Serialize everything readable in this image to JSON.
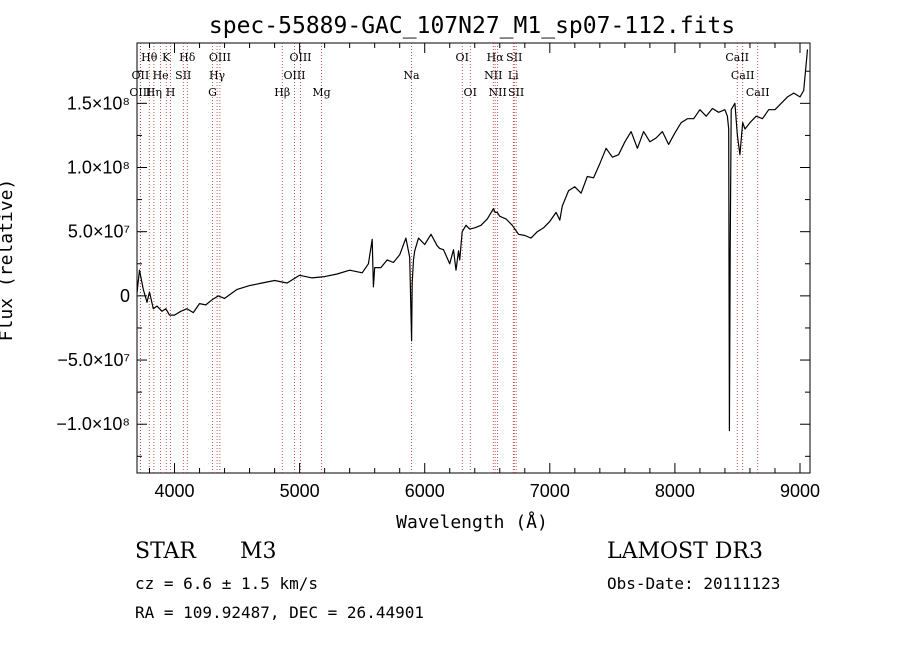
{
  "chart_data": {
    "type": "line",
    "title": "spec-55889-GAC_107N27_M1_sp07-112.fits",
    "xlabel": "Wavelength (Å)",
    "ylabel": "Flux (relative)",
    "xlim": [
      3700,
      9080
    ],
    "ylim": [
      -138000000.0,
      197000000.0
    ],
    "x_ticks": [
      4000,
      5000,
      6000,
      7000,
      8000,
      9000
    ],
    "x_tick_labels": [
      "4000",
      "5000",
      "6000",
      "7000",
      "8000",
      "9000"
    ],
    "y_ticks": [
      -100000000.0,
      -50000000.0,
      0,
      50000000.0,
      100000000.0,
      150000000.0
    ],
    "y_tick_labels": [
      "−1.0×10⁸",
      "−5.0×10⁷",
      "0",
      "5.0×10⁷",
      "1.0×10⁸",
      "1.5×10⁸"
    ],
    "series": [
      {
        "name": "flux",
        "x": [
          3700,
          3720,
          3750,
          3780,
          3800,
          3830,
          3860,
          3900,
          3930,
          3960,
          4000,
          4050,
          4100,
          4150,
          4200,
          4250,
          4300,
          4350,
          4400,
          4500,
          4600,
          4700,
          4800,
          4900,
          5000,
          5100,
          5200,
          5300,
          5400,
          5500,
          5550,
          5580,
          5590,
          5600,
          5650,
          5700,
          5750,
          5800,
          5850,
          5880,
          5890,
          5895,
          5900,
          5910,
          5920,
          5950,
          6000,
          6050,
          6100,
          6120,
          6150,
          6200,
          6230,
          6250,
          6270,
          6280,
          6300,
          6330,
          6360,
          6400,
          6450,
          6500,
          6550,
          6563,
          6580,
          6600,
          6650,
          6700,
          6750,
          6800,
          6850,
          6900,
          6950,
          7000,
          7050,
          7080,
          7100,
          7150,
          7200,
          7250,
          7300,
          7350,
          7400,
          7450,
          7500,
          7550,
          7600,
          7650,
          7700,
          7750,
          7800,
          7850,
          7900,
          7950,
          8000,
          8050,
          8100,
          8150,
          8200,
          8250,
          8300,
          8350,
          8400,
          8420,
          8430,
          8436,
          8442,
          8450,
          8480,
          8500,
          8520,
          8542,
          8560,
          8600,
          8650,
          8700,
          8750,
          8800,
          8850,
          8900,
          8950,
          9000,
          9030,
          9060
        ],
        "y": [
          2500000.0,
          20000000.0,
          5000000.0,
          -5000000.0,
          3000000.0,
          -10000000.0,
          -8000000.0,
          -12000000.0,
          -10000000.0,
          -15000000.0,
          -15000000.0,
          -12000000.0,
          -10000000.0,
          -13000000.0,
          -6000000.0,
          -7000000.0,
          -3000000.0,
          0.0,
          -2000000.0,
          5000000.0,
          8000000.0,
          10000000.0,
          12000000.0,
          10000000.0,
          16000000.0,
          14000000.0,
          15000000.0,
          17000000.0,
          20000000.0,
          18000000.0,
          25000000.0,
          44000000.0,
          7000000.0,
          22000000.0,
          22000000.0,
          28000000.0,
          26000000.0,
          32000000.0,
          45000000.0,
          30000000.0,
          -15000000.0,
          -35000000.0,
          10000000.0,
          28000000.0,
          35000000.0,
          45000000.0,
          40000000.0,
          48000000.0,
          39000000.0,
          37000000.0,
          36000000.0,
          25000000.0,
          36000000.0,
          20000000.0,
          35000000.0,
          28000000.0,
          50000000.0,
          55000000.0,
          52000000.0,
          53000000.0,
          55000000.0,
          60000000.0,
          68000000.0,
          65000000.0,
          65000000.0,
          62000000.0,
          60000000.0,
          55000000.0,
          48000000.0,
          47000000.0,
          45000000.0,
          50000000.0,
          53000000.0,
          58000000.0,
          65000000.0,
          59000000.0,
          70000000.0,
          82000000.0,
          85000000.0,
          80000000.0,
          93000000.0,
          92000000.0,
          103000000.0,
          115000000.0,
          108000000.0,
          110000000.0,
          120000000.0,
          128000000.0,
          115000000.0,
          128000000.0,
          120000000.0,
          123000000.0,
          128000000.0,
          118000000.0,
          127000000.0,
          135000000.0,
          138000000.0,
          138000000.0,
          145000000.0,
          140000000.0,
          146000000.0,
          143000000.0,
          145000000.0,
          140000000.0,
          130000000.0,
          -105000000.0,
          35000000.0,
          145000000.0,
          150000000.0,
          125000000.0,
          110000000.0,
          135000000.0,
          130000000.0,
          135000000.0,
          140000000.0,
          138000000.0,
          145000000.0,
          145000000.0,
          150000000.0,
          155000000.0,
          158000000.0,
          155000000.0,
          160000000.0,
          192000000.0
        ]
      }
    ],
    "line_markers": [
      {
        "label": "Hθ",
        "x": 3798,
        "row": 1
      },
      {
        "label": "OII",
        "x": 3727,
        "row": 2
      },
      {
        "label": "OIII",
        "x": 3727,
        "row": 3
      },
      {
        "label": "K",
        "x": 3934,
        "row": 1
      },
      {
        "label": "He",
        "x": 3889,
        "row": 2
      },
      {
        "label": "Hη",
        "x": 3835,
        "row": 3
      },
      {
        "label": "Hδ",
        "x": 4102,
        "row": 1
      },
      {
        "label": "SII",
        "x": 4070,
        "row": 2
      },
      {
        "label": "H",
        "x": 3968,
        "row": 3
      },
      {
        "label": "OIII",
        "x": 4363,
        "row": 1
      },
      {
        "label": "Hγ",
        "x": 4340,
        "row": 2
      },
      {
        "label": "G",
        "x": 4304,
        "row": 3
      },
      {
        "label": "OIII",
        "x": 5007,
        "row": 1
      },
      {
        "label": "OIII",
        "x": 4959,
        "row": 2
      },
      {
        "label": "Hβ",
        "x": 4861,
        "row": 3
      },
      {
        "label": "Mg",
        "x": 5175,
        "row": 3
      },
      {
        "label": "Na",
        "x": 5894,
        "row": 2
      },
      {
        "label": "OI",
        "x": 6300,
        "row": 1
      },
      {
        "label": "OI",
        "x": 6364,
        "row": 3
      },
      {
        "label": "Hα",
        "x": 6563,
        "row": 1
      },
      {
        "label": "NII",
        "x": 6548,
        "row": 2
      },
      {
        "label": "NII",
        "x": 6583,
        "row": 3
      },
      {
        "label": "SII",
        "x": 6716,
        "row": 1
      },
      {
        "label": "Li",
        "x": 6708,
        "row": 2
      },
      {
        "label": "SII",
        "x": 6731,
        "row": 3
      },
      {
        "label": "CaII",
        "x": 8498,
        "row": 1
      },
      {
        "label": "CaII",
        "x": 8542,
        "row": 2
      },
      {
        "label": "CaII",
        "x": 8662,
        "row": 3
      }
    ]
  },
  "info": {
    "object_class": "STAR",
    "subclass": "M3",
    "survey": "LAMOST DR3",
    "redshift": "cz = 6.6 ± 1.5 km/s",
    "obs_date": "Obs-Date: 20111123",
    "coords": "RA = 109.92487, DEC =  26.44901"
  }
}
